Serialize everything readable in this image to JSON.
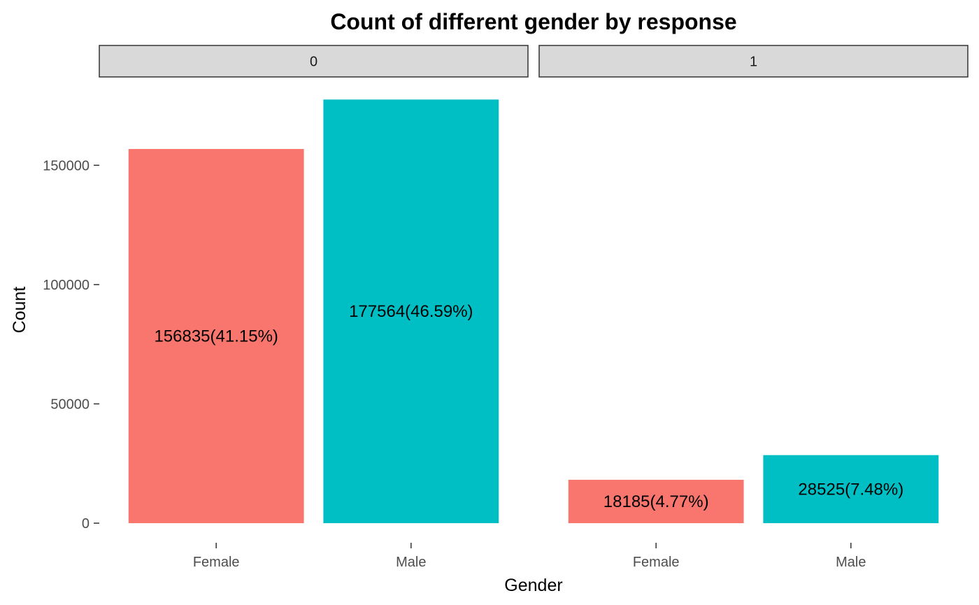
{
  "chart_data": {
    "type": "bar",
    "title": "Count of different gender by response",
    "xlabel": "Gender",
    "ylabel": "Count",
    "ylim": [
      0,
      180000
    ],
    "yticks": [
      0,
      50000,
      100000,
      150000
    ],
    "ytick_labels": [
      "0",
      "50000",
      "100000",
      "150000"
    ],
    "grid": false,
    "legend": "none",
    "colors": {
      "Female": "#F8766D",
      "Male": "#00BFC4"
    },
    "facets": [
      {
        "strip": "0",
        "categories": [
          "Female",
          "Male"
        ],
        "values": [
          156835,
          177564
        ],
        "labels": [
          "156835(41.15%)",
          "177564(46.59%)"
        ]
      },
      {
        "strip": "1",
        "categories": [
          "Female",
          "Male"
        ],
        "values": [
          18185,
          28525
        ],
        "labels": [
          "18185(4.77%)",
          "28525(7.48%)"
        ]
      }
    ]
  }
}
